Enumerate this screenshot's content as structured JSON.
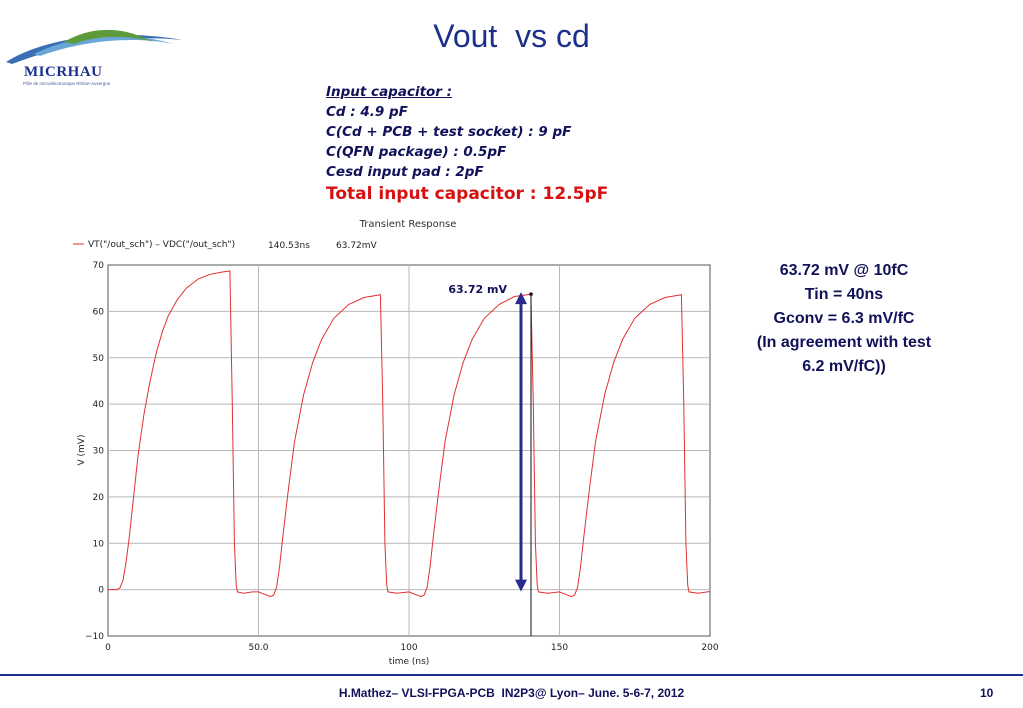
{
  "slide": {
    "title": "Vout  vs cd",
    "logo_text": "MICRHAU",
    "logo_subtitle": "Pôle de microélectronique Rhône-Auvergne",
    "footer": "H.Mathez– VLSI-FPGA-PCB  IN2P3@ Lyon– June. 5-6-7, 2012",
    "page_number": "10"
  },
  "info": {
    "heading": "Input capacitor :",
    "lines": [
      "Cd : 4.9 pF",
      "C(Cd + PCB + test socket) : 9 pF",
      "C(QFN package) : 0.5pF",
      "Cesd input pad : 2pF"
    ],
    "total": "Total input capacitor : 12.5pF"
  },
  "results": {
    "lines": [
      "63.72 mV @ 10fC",
      "Tin = 40ns",
      "Gconv = 6.3 mV/fC",
      "(In agreement with test",
      "6.2 mV/fC))"
    ]
  },
  "colors": {
    "title": "#1b2f8c",
    "text": "#11115a",
    "highlight": "#d81010",
    "trace": "#e03030",
    "arrow": "#2a2a8c",
    "grid": "#b8b8b8"
  },
  "chart_data": {
    "type": "line",
    "title": "Transient Response",
    "legend": {
      "series_label": "VT(\"/out_sch\") – VDC(\"/out_sch\")",
      "cursor_x": "140.53ns",
      "cursor_y": "63.72mV"
    },
    "xlabel": "time (ns)",
    "ylabel": "V (mV)",
    "xlim": [
      0,
      200
    ],
    "ylim": [
      -10,
      70
    ],
    "x_ticks": [
      0,
      50,
      100,
      150,
      200
    ],
    "x_tick_labels": [
      "0",
      "50.0",
      "100",
      "150",
      "200"
    ],
    "y_ticks": [
      -10,
      0,
      10,
      20,
      30,
      40,
      50,
      60,
      70
    ],
    "y_tick_labels": [
      "−10",
      "0",
      "10",
      "20",
      "30",
      "40",
      "50",
      "60",
      "70"
    ],
    "grid": true,
    "cursor": {
      "x": 140.53,
      "y": 63.72
    },
    "annotation": {
      "text": "63.72 mV",
      "x": 140.53,
      "y_from": 0,
      "y_to": 63.72
    },
    "series": [
      {
        "points": [
          [
            0,
            0
          ],
          [
            3,
            0
          ],
          [
            4,
            0.4
          ],
          [
            5,
            2
          ],
          [
            6,
            6
          ],
          [
            7,
            11
          ],
          [
            8,
            17
          ],
          [
            9,
            23
          ],
          [
            10,
            29
          ],
          [
            12,
            38
          ],
          [
            14,
            45
          ],
          [
            16,
            51
          ],
          [
            18,
            55.5
          ],
          [
            20,
            59
          ],
          [
            23,
            62.5
          ],
          [
            26,
            65
          ],
          [
            30,
            67
          ],
          [
            34,
            68
          ],
          [
            38,
            68.5
          ],
          [
            40.5,
            68.7
          ],
          [
            41.3,
            40
          ],
          [
            42,
            10
          ],
          [
            42.6,
            1
          ],
          [
            43,
            -0.5
          ],
          [
            45,
            -0.8
          ],
          [
            48,
            -0.5
          ],
          [
            50,
            -0.5
          ],
          [
            52,
            -1
          ],
          [
            54,
            -1.5
          ],
          [
            55,
            -1.2
          ],
          [
            56,
            0.5
          ],
          [
            57,
            5
          ],
          [
            58,
            11
          ],
          [
            60,
            22
          ],
          [
            62,
            32
          ],
          [
            65,
            42
          ],
          [
            68,
            49
          ],
          [
            71,
            54
          ],
          [
            75,
            58.5
          ],
          [
            80,
            61.5
          ],
          [
            85,
            63
          ],
          [
            90.5,
            63.6
          ],
          [
            91.3,
            40
          ],
          [
            92,
            10
          ],
          [
            92.6,
            1
          ],
          [
            93,
            -0.5
          ],
          [
            96,
            -0.8
          ],
          [
            100,
            -0.5
          ],
          [
            102,
            -1
          ],
          [
            104,
            -1.5
          ],
          [
            105,
            -1.2
          ],
          [
            106,
            0.5
          ],
          [
            107,
            5
          ],
          [
            108,
            11
          ],
          [
            110,
            22
          ],
          [
            112,
            32
          ],
          [
            115,
            42
          ],
          [
            118,
            49
          ],
          [
            121,
            54
          ],
          [
            125,
            58.5
          ],
          [
            130,
            61.5
          ],
          [
            135,
            63.2
          ],
          [
            140.5,
            63.7
          ],
          [
            141.3,
            40
          ],
          [
            142,
            10
          ],
          [
            142.6,
            1
          ],
          [
            143,
            -0.5
          ],
          [
            146,
            -0.8
          ],
          [
            150,
            -0.5
          ],
          [
            152,
            -1
          ],
          [
            154,
            -1.5
          ],
          [
            155,
            -1.2
          ],
          [
            156,
            0.5
          ],
          [
            157,
            5
          ],
          [
            158,
            11
          ],
          [
            160,
            22
          ],
          [
            162,
            32
          ],
          [
            165,
            42
          ],
          [
            168,
            49
          ],
          [
            171,
            54
          ],
          [
            175,
            58.5
          ],
          [
            180,
            61.5
          ],
          [
            185,
            63
          ],
          [
            190.5,
            63.6
          ],
          [
            191.3,
            40
          ],
          [
            192,
            10
          ],
          [
            192.6,
            1
          ],
          [
            193,
            -0.5
          ],
          [
            196,
            -0.8
          ],
          [
            200,
            -0.4
          ]
        ]
      }
    ]
  }
}
